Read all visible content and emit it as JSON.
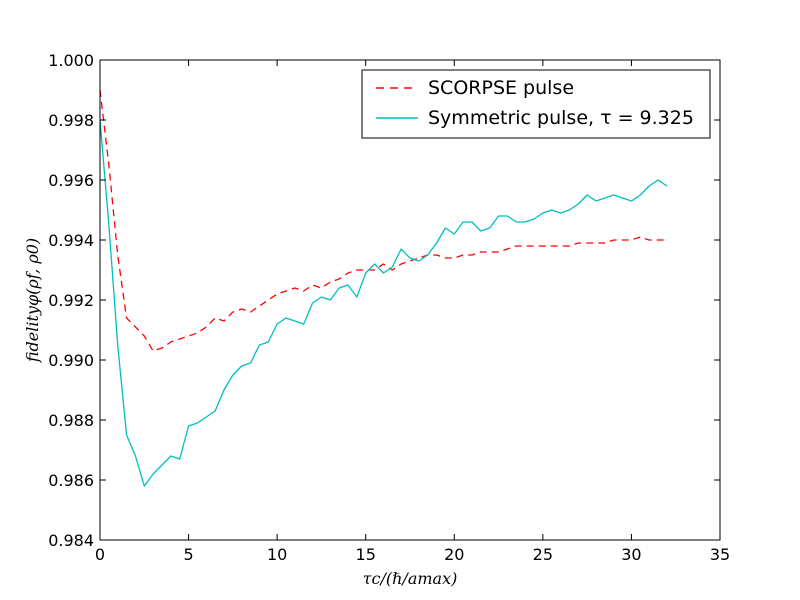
{
  "chart_data": {
    "type": "line",
    "xlabel": "τc/(ℏ/amax)",
    "ylabel": "fidelityφ(ρf, ρ0)",
    "xlim": [
      0,
      35
    ],
    "ylim": [
      0.984,
      1.0
    ],
    "x_ticks": [
      "0",
      "5",
      "10",
      "15",
      "20",
      "25",
      "30",
      "35"
    ],
    "x_tick_values": [
      0,
      5,
      10,
      15,
      20,
      25,
      30,
      35
    ],
    "y_ticks": [
      "0.984",
      "0.986",
      "0.988",
      "0.990",
      "0.992",
      "0.994",
      "0.996",
      "0.998",
      "1.000"
    ],
    "y_tick_values": [
      0.984,
      0.986,
      0.988,
      0.99,
      0.992,
      0.994,
      0.996,
      0.998,
      1.0
    ],
    "grid": false,
    "legend_position": "top-right",
    "series": [
      {
        "name": "SCORPSE pulse",
        "color": "#ff0000",
        "style": "dashed",
        "x": [
          0,
          0.5,
          1.0,
          1.5,
          2.0,
          2.5,
          3.0,
          3.5,
          4.0,
          4.5,
          5.0,
          5.5,
          6.0,
          6.5,
          7.0,
          7.5,
          8.0,
          8.5,
          9.0,
          9.5,
          10.0,
          10.5,
          11.0,
          11.5,
          12.0,
          12.5,
          13.0,
          13.5,
          14.0,
          14.5,
          15.0,
          15.5,
          16.0,
          16.5,
          17.0,
          17.5,
          18.0,
          18.5,
          19.0,
          19.5,
          20.0,
          20.5,
          21.0,
          21.5,
          22.0,
          22.5,
          23.0,
          23.5,
          24.0,
          24.5,
          25.0,
          25.5,
          26.0,
          26.5,
          27.0,
          27.5,
          28.0,
          28.5,
          29.0,
          29.5,
          30.0,
          30.5,
          31.0,
          31.5,
          32.0
        ],
        "y": [
          0.999,
          0.9965,
          0.9935,
          0.9914,
          0.9911,
          0.9908,
          0.9903,
          0.9904,
          0.9906,
          0.9907,
          0.9908,
          0.9909,
          0.9911,
          0.9914,
          0.9913,
          0.9916,
          0.9917,
          0.9916,
          0.9918,
          0.992,
          0.9922,
          0.9923,
          0.9924,
          0.9923,
          0.9925,
          0.9924,
          0.9926,
          0.9927,
          0.9929,
          0.993,
          0.993,
          0.993,
          0.9932,
          0.993,
          0.9932,
          0.9933,
          0.9934,
          0.9935,
          0.9935,
          0.9934,
          0.9934,
          0.9935,
          0.9935,
          0.9936,
          0.9936,
          0.9936,
          0.9937,
          0.9938,
          0.9938,
          0.9938,
          0.9938,
          0.9938,
          0.9938,
          0.9938,
          0.9939,
          0.9939,
          0.9939,
          0.9939,
          0.994,
          0.994,
          0.994,
          0.9941,
          0.994,
          0.994,
          0.994
        ]
      },
      {
        "name": "Symmetric pulse, τ = 9.325",
        "color": "#00bfbf",
        "style": "solid",
        "x": [
          0,
          0.5,
          1.0,
          1.5,
          2.0,
          2.5,
          3.0,
          3.5,
          4.0,
          4.5,
          5.0,
          5.5,
          6.0,
          6.5,
          7.0,
          7.5,
          8.0,
          8.5,
          9.0,
          9.5,
          10.0,
          10.5,
          11.0,
          11.5,
          12.0,
          12.5,
          13.0,
          13.5,
          14.0,
          14.5,
          15.0,
          15.5,
          16.0,
          16.5,
          17.0,
          17.5,
          18.0,
          18.5,
          19.0,
          19.5,
          20.0,
          20.5,
          21.0,
          21.5,
          22.0,
          22.5,
          23.0,
          23.5,
          24.0,
          24.5,
          25.0,
          25.5,
          26.0,
          26.5,
          27.0,
          27.5,
          28.0,
          28.5,
          29.0,
          29.5,
          30.0,
          30.5,
          31.0,
          31.5,
          32.0
        ],
        "y": [
          0.998,
          0.9945,
          0.9905,
          0.9875,
          0.9868,
          0.9858,
          0.9862,
          0.9865,
          0.9868,
          0.9867,
          0.9878,
          0.9879,
          0.9881,
          0.9883,
          0.989,
          0.9895,
          0.9898,
          0.9899,
          0.9905,
          0.9906,
          0.9912,
          0.9914,
          0.9913,
          0.9912,
          0.9919,
          0.9921,
          0.992,
          0.9924,
          0.9925,
          0.9921,
          0.9929,
          0.9932,
          0.9929,
          0.9931,
          0.9937,
          0.9934,
          0.9933,
          0.9935,
          0.9939,
          0.9944,
          0.9942,
          0.9946,
          0.9946,
          0.9943,
          0.9944,
          0.9948,
          0.9948,
          0.9946,
          0.9946,
          0.9947,
          0.9949,
          0.995,
          0.9949,
          0.995,
          0.9952,
          0.9955,
          0.9953,
          0.9954,
          0.9955,
          0.9954,
          0.9953,
          0.9955,
          0.9958,
          0.996,
          0.9958
        ]
      }
    ]
  }
}
